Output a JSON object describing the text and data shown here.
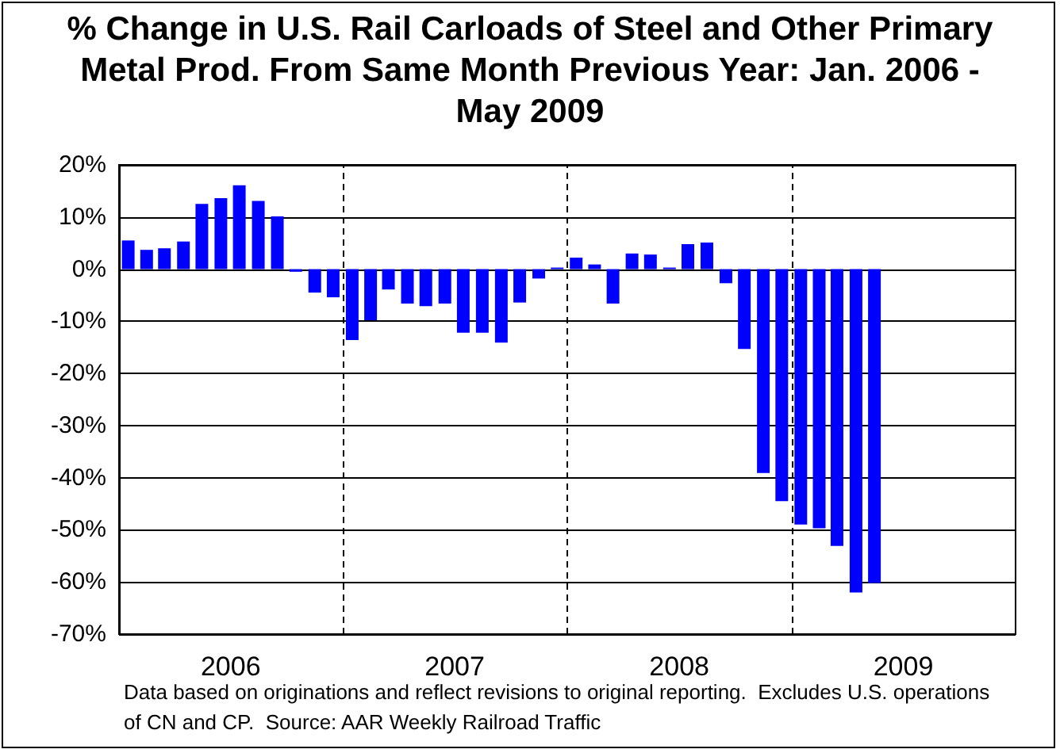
{
  "chart_data": {
    "type": "bar",
    "title": "% Change in U.S. Rail Carloads of Steel and Other Primary Metal Prod. From Same Month Previous Year: Jan. 2006 - May 2009",
    "x": [
      "2006-01-16",
      "2006-02-15",
      "2006-03-16",
      "2006-04-16",
      "2006-05-16",
      "2006-06-16",
      "2006-07-16",
      "2006-08-16",
      "2006-09-16",
      "2006-10-16",
      "2006-11-16",
      "2006-12-16",
      "2007-01-16",
      "2007-02-15",
      "2007-03-16",
      "2007-04-16",
      "2007-05-16",
      "2007-06-16",
      "2007-07-16",
      "2007-08-16",
      "2007-09-16",
      "2007-10-16",
      "2007-11-16",
      "2007-12-16",
      "2008-01-16",
      "2008-02-15",
      "2008-03-16",
      "2008-04-16",
      "2008-05-16",
      "2008-06-16",
      "2008-07-16",
      "2008-08-16",
      "2008-09-16",
      "2008-10-16",
      "2008-11-16",
      "2008-12-16",
      "2009-01-16",
      "2009-02-15",
      "2009-03-16",
      "2009-04-16",
      "2009-05-16"
    ],
    "values": [
      5.5,
      3.7,
      4.0,
      5.3,
      12.5,
      13.6,
      16.1,
      13.1,
      10.1,
      -0.5,
      -4.5,
      -5.4,
      -13.6,
      -9.8,
      -3.9,
      -6.6,
      -7.1,
      -6.6,
      -12.2,
      -12.2,
      -14.1,
      -6.4,
      -1.8,
      0.3,
      2.2,
      0.9,
      -6.6,
      3.0,
      2.8,
      0.3,
      4.8,
      5.1,
      -2.7,
      -15.3,
      -39.1,
      -44.5,
      -49.0,
      -49.7,
      -53.1,
      -62.0,
      -60.2
    ],
    "color": "#0000ff",
    "xlim": [
      "2006-01-01",
      "2010-01-01"
    ],
    "xticks": [
      {
        "value": "2006-07-02",
        "label": "2006"
      },
      {
        "value": "2007-07-02",
        "label": "2007"
      },
      {
        "value": "2008-07-02",
        "label": "2008"
      },
      {
        "value": "2009-07-02",
        "label": "2009"
      }
    ],
    "ylim": [
      -70,
      20
    ],
    "yticks": [
      {
        "value": -70,
        "label": "-70%"
      },
      {
        "value": -60,
        "label": "-60%"
      },
      {
        "value": -50,
        "label": "-50%"
      },
      {
        "value": -40,
        "label": "-40%"
      },
      {
        "value": -30,
        "label": "-30%"
      },
      {
        "value": -20,
        "label": "-20%"
      },
      {
        "value": -10,
        "label": "-10%"
      },
      {
        "value": 0,
        "label": "0%"
      },
      {
        "value": 10,
        "label": "10%"
      },
      {
        "value": 20,
        "label": "20%"
      }
    ],
    "grid": "y",
    "ref_lines": [
      {
        "axis": "x",
        "value": "2007-01-01",
        "line_style": "dashed",
        "color": "#000000"
      },
      {
        "axis": "x",
        "value": "2008-01-01",
        "line_style": "dashed",
        "color": "#000000"
      },
      {
        "axis": "x",
        "value": "2009-01-01",
        "line_style": "dashed",
        "color": "#000000"
      }
    ],
    "annotations": [
      "Data based on originations and reflect revisions to original reporting.  Excludes U.S. operations of CN and CP.  Source: AAR Weekly Railroad Traffic"
    ]
  }
}
